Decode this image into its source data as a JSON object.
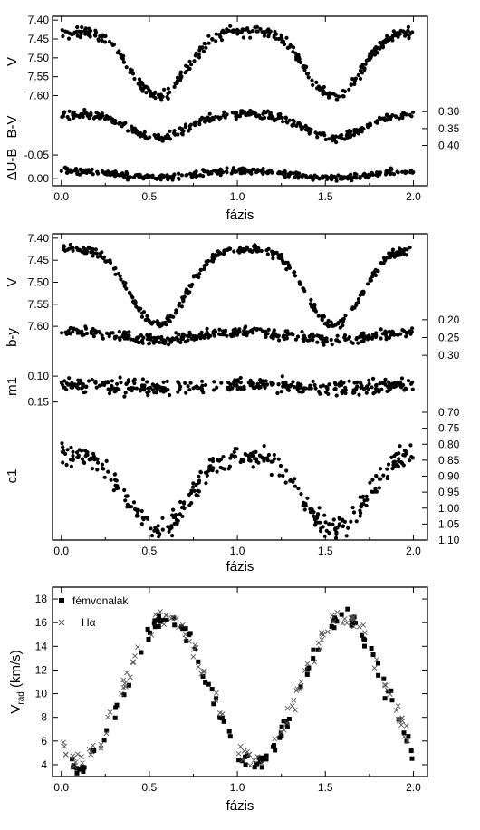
{
  "chart_data": [
    {
      "type": "scatter",
      "panel": "top",
      "xlabel": "fázis",
      "xlim": [
        -0.05,
        2.08
      ],
      "x_ticks": [
        "0.0",
        "0.5",
        "1.0",
        "1.5",
        "2.0"
      ],
      "subplots": [
        {
          "ylabel": "V",
          "axis_side": "left",
          "ylim": [
            7.39,
            7.63
          ],
          "inverted": true,
          "y_ticks": [
            "7.40",
            "7.45",
            "7.50",
            "7.55",
            "7.60"
          ],
          "series": [
            {
              "mean": 7.495,
              "amplitude": 0.085,
              "min_phase": 0.55,
              "harmonic": 0.25,
              "scatter": 0.012
            }
          ]
        },
        {
          "ylabel": "B-V",
          "axis_side": "right",
          "ylim": [
            0.27,
            0.42
          ],
          "inverted": true,
          "y_ticks": [
            "0.30",
            "0.35",
            "0.40"
          ],
          "series": [
            {
              "mean": 0.335,
              "amplitude": 0.035,
              "min_phase": 0.55,
              "harmonic": 0.2,
              "scatter": 0.01
            }
          ]
        },
        {
          "ylabel": "ΔU-B",
          "axis_side": "left",
          "ylim": [
            -0.075,
            0.015
          ],
          "inverted": true,
          "y_ticks": [
            "-0.05",
            "0.00"
          ],
          "series": [
            {
              "mean": -0.01,
              "amplitude": 0.007,
              "min_phase": 0.55,
              "harmonic": 0.0,
              "scatter": 0.006
            }
          ]
        }
      ]
    },
    {
      "type": "scatter",
      "panel": "middle",
      "xlabel": "fázis",
      "xlim": [
        -0.05,
        2.08
      ],
      "x_ticks": [
        "0.0",
        "0.5",
        "1.0",
        "1.5",
        "2.0"
      ],
      "subplots": [
        {
          "ylabel": "V",
          "axis_side": "left",
          "ylim": [
            7.39,
            7.61
          ],
          "inverted": true,
          "y_ticks": [
            "7.40",
            "7.45",
            "7.50",
            "7.55",
            "7.60"
          ],
          "series": [
            {
              "mean": 7.49,
              "amplitude": 0.085,
              "min_phase": 0.55,
              "harmonic": 0.25,
              "scatter": 0.008
            }
          ]
        },
        {
          "ylabel": "b-y",
          "axis_side": "right",
          "ylim": [
            0.18,
            0.32
          ],
          "inverted": true,
          "y_ticks": [
            "0.20",
            "0.25",
            "0.30"
          ],
          "series": [
            {
              "mean": 0.245,
              "amplitude": 0.012,
              "min_phase": 0.55,
              "harmonic": 0.0,
              "scatter": 0.012
            }
          ]
        },
        {
          "ylabel": "m1",
          "axis_side": "left",
          "ylim": [
            0.07,
            0.17
          ],
          "inverted": true,
          "y_ticks": [
            "0.10",
            "0.15"
          ],
          "series": [
            {
              "mean": 0.12,
              "amplitude": 0.004,
              "min_phase": 0.55,
              "harmonic": 0.0,
              "scatter": 0.012
            }
          ]
        },
        {
          "ylabel": "c1",
          "axis_side": "right",
          "ylim": [
            0.7,
            1.1
          ],
          "inverted": true,
          "y_ticks": [
            "0.70",
            "0.75",
            "0.80",
            "0.85",
            "0.90",
            "0.95",
            "1.00",
            "1.05",
            "1.10"
          ],
          "series": [
            {
              "mean": 0.93,
              "amplitude": 0.115,
              "min_phase": 0.55,
              "harmonic": 0.2,
              "scatter": 0.03
            }
          ]
        }
      ]
    },
    {
      "type": "scatter",
      "panel": "bottom",
      "xlabel": "fázis",
      "ylabel": "V_rad (km/s)",
      "ylabel_main": "V",
      "ylabel_sub": "rad",
      "ylabel_unit": " (km/s)",
      "xlim": [
        -0.05,
        2.08
      ],
      "ylim": [
        3,
        19
      ],
      "x_ticks": [
        "0.0",
        "0.5",
        "1.0",
        "1.5",
        "2.0"
      ],
      "y_ticks": [
        "4",
        "6",
        "8",
        "10",
        "12",
        "14",
        "16",
        "18"
      ],
      "legend": [
        "fémvonalak",
        "Hα"
      ],
      "legend_position": "top-left",
      "series": [
        {
          "name": "fémvonalak",
          "marker": "filled-square",
          "mean": 10.2,
          "amplitude": 6.2,
          "max_phase": 0.6,
          "scatter": 0.7
        },
        {
          "name": "Hα",
          "marker": "cross",
          "mean": 10.5,
          "amplitude": 6.0,
          "max_phase": 0.6,
          "scatter": 0.7
        }
      ]
    }
  ]
}
